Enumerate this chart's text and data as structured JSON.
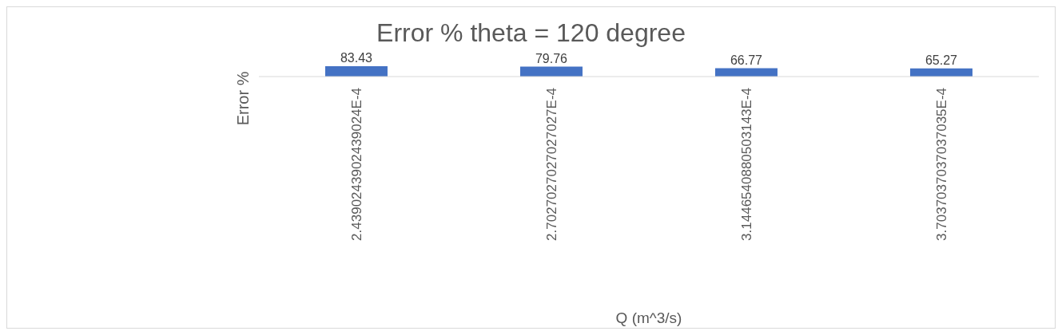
{
  "chart_data": {
    "type": "bar",
    "title": "Error % theta = 120 degree",
    "xlabel": "Q (m^3/s)",
    "ylabel": "Error %",
    "categories": [
      "2.4390243902439024E-4",
      "2.7027027027027027E-4",
      "3.1446540880503143E-4",
      "3.7037037037037035E-4"
    ],
    "values": [
      83.43,
      79.76,
      66.77,
      65.27
    ],
    "color": "#4472c4",
    "tick_labels": "x",
    "data_labels": true
  }
}
